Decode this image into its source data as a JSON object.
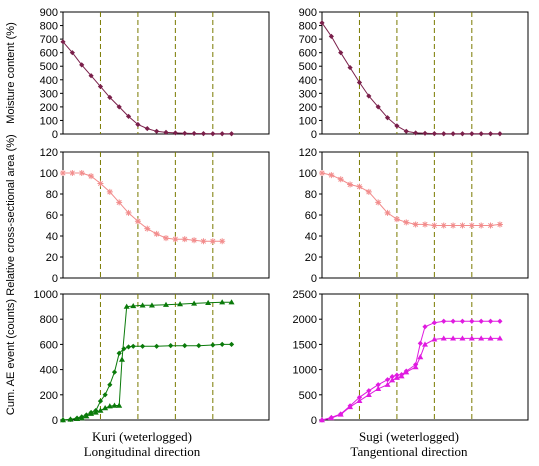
{
  "captions": [
    {
      "line1": "Kuri (weterlogged)",
      "line2": "Longitudinal direction"
    },
    {
      "line1": "Sugi (weterlogged)",
      "line2": "Tangentional direction"
    }
  ],
  "colors": {
    "moisture": "#7a1f4a",
    "area": "#f28c8c",
    "ae_kuri": "#0a7a0a",
    "ae_sugi": "#e01be0",
    "guides": "#7a7a00"
  },
  "chart_data": [
    {
      "id": "kuri-moisture",
      "type": "line",
      "ylabel": "Moisture content (%)",
      "ylim": [
        0,
        900
      ],
      "yticks": [
        0,
        100,
        200,
        300,
        400,
        500,
        600,
        700,
        800,
        900
      ],
      "xlim": [
        0,
        22
      ],
      "guides": [
        4,
        8,
        12,
        16
      ],
      "series": [
        {
          "marker": "diamond",
          "color": "#7a1f4a",
          "x": [
            0,
            1,
            2,
            3,
            4,
            5,
            6,
            7,
            8,
            9,
            10,
            11,
            12,
            13,
            14,
            15,
            16,
            17,
            18
          ],
          "y": [
            680,
            600,
            510,
            430,
            350,
            270,
            200,
            130,
            70,
            40,
            20,
            12,
            8,
            5,
            4,
            3,
            2,
            2,
            2
          ]
        }
      ]
    },
    {
      "id": "sugi-moisture",
      "type": "line",
      "ylabel": "",
      "ylim": [
        0,
        900
      ],
      "yticks": [
        0,
        100,
        200,
        300,
        400,
        500,
        600,
        700,
        800,
        900
      ],
      "xlim": [
        0,
        22
      ],
      "guides": [
        4,
        8,
        12,
        16
      ],
      "series": [
        {
          "marker": "diamond",
          "color": "#7a1f4a",
          "x": [
            0,
            1,
            2,
            3,
            4,
            5,
            6,
            7,
            8,
            9,
            10,
            11,
            12,
            13,
            14,
            15,
            16,
            17,
            18,
            19
          ],
          "y": [
            820,
            720,
            600,
            490,
            380,
            280,
            200,
            120,
            60,
            20,
            8,
            5,
            3,
            2,
            2,
            2,
            2,
            2,
            2,
            2
          ]
        }
      ]
    },
    {
      "id": "kuri-area",
      "type": "line",
      "ylabel": "Relative cross-sectional area (%)",
      "ylim": [
        0,
        120
      ],
      "yticks": [
        0,
        20,
        40,
        60,
        80,
        100,
        120
      ],
      "xlim": [
        0,
        22
      ],
      "guides": [
        4,
        8,
        12,
        16
      ],
      "series": [
        {
          "marker": "star",
          "color": "#f28c8c",
          "x": [
            0,
            1,
            2,
            3,
            4,
            5,
            6,
            7,
            8,
            9,
            10,
            11,
            12,
            13,
            14,
            15,
            16,
            17
          ],
          "y": [
            100,
            100,
            100,
            97,
            90,
            82,
            72,
            62,
            54,
            47,
            42,
            38,
            37,
            37,
            36,
            35,
            35,
            35
          ]
        }
      ]
    },
    {
      "id": "sugi-area",
      "type": "line",
      "ylabel": "",
      "ylim": [
        0,
        120
      ],
      "yticks": [
        0,
        20,
        40,
        60,
        80,
        100,
        120
      ],
      "xlim": [
        0,
        22
      ],
      "guides": [
        4,
        8,
        12,
        16
      ],
      "series": [
        {
          "marker": "star",
          "color": "#f28c8c",
          "x": [
            0,
            1,
            2,
            3,
            4,
            5,
            6,
            7,
            8,
            9,
            10,
            11,
            12,
            13,
            14,
            15,
            16,
            17,
            18,
            19
          ],
          "y": [
            100,
            98,
            94,
            89,
            87,
            82,
            72,
            62,
            56,
            53,
            51,
            51,
            50,
            50,
            50,
            50,
            50,
            50,
            50,
            51
          ]
        }
      ]
    },
    {
      "id": "kuri-ae",
      "type": "line",
      "ylabel": "Cum. AE event (counts)",
      "ylim": [
        0,
        1000
      ],
      "yticks": [
        0,
        200,
        400,
        600,
        800,
        1000
      ],
      "xlim": [
        0,
        22
      ],
      "guides": [
        4,
        8,
        12,
        16
      ],
      "series": [
        {
          "marker": "triangle",
          "color": "#0a7a0a",
          "x": [
            0,
            0.8,
            1.5,
            2,
            2.5,
            3,
            3.5,
            4,
            4.5,
            5,
            5.5,
            6,
            6.3,
            6.8,
            7.5,
            8.5,
            9.5,
            11,
            12.5,
            14,
            15.5,
            17,
            18
          ],
          "y": [
            0,
            5,
            10,
            15,
            30,
            50,
            60,
            75,
            95,
            110,
            115,
            115,
            480,
            900,
            905,
            910,
            910,
            915,
            920,
            925,
            930,
            935,
            935
          ]
        },
        {
          "marker": "diamond",
          "color": "#0a7a0a",
          "x": [
            0,
            0.8,
            1.5,
            2,
            2.5,
            3,
            3.5,
            4,
            4.5,
            5,
            5.5,
            6,
            6.5,
            7,
            7.5,
            8.5,
            10,
            11.5,
            13,
            14.5,
            16,
            17,
            18
          ],
          "y": [
            0,
            5,
            15,
            25,
            40,
            60,
            75,
            150,
            200,
            280,
            380,
            530,
            565,
            580,
            585,
            585,
            585,
            590,
            590,
            590,
            595,
            600,
            600
          ]
        }
      ]
    },
    {
      "id": "sugi-ae",
      "type": "line",
      "ylabel": "",
      "ylim": [
        0,
        2500
      ],
      "yticks": [
        0,
        500,
        1000,
        1500,
        2000,
        2500
      ],
      "xlim": [
        0,
        22
      ],
      "guides": [
        4,
        8,
        12,
        16
      ],
      "series": [
        {
          "marker": "diamond",
          "color": "#e01be0",
          "x": [
            0,
            1,
            2,
            3,
            4,
            5,
            6,
            7,
            7.5,
            8,
            8.5,
            9,
            10,
            10.5,
            11,
            12,
            13,
            14,
            15,
            16,
            17,
            18,
            19
          ],
          "y": [
            0,
            50,
            120,
            280,
            450,
            580,
            700,
            800,
            860,
            890,
            900,
            970,
            1100,
            1520,
            1850,
            1930,
            1960,
            1960,
            1960,
            1960,
            1960,
            1960,
            1960
          ]
        },
        {
          "marker": "triangle",
          "color": "#e01be0",
          "x": [
            0,
            1,
            2,
            3,
            4,
            5,
            6,
            7,
            7.5,
            8,
            8.5,
            9,
            10,
            10.5,
            11,
            12,
            13,
            14,
            15,
            16,
            17,
            18,
            19
          ],
          "y": [
            0,
            40,
            110,
            260,
            380,
            500,
            620,
            700,
            790,
            840,
            870,
            950,
            1050,
            1250,
            1500,
            1600,
            1620,
            1620,
            1620,
            1620,
            1620,
            1620,
            1620
          ]
        }
      ]
    }
  ]
}
